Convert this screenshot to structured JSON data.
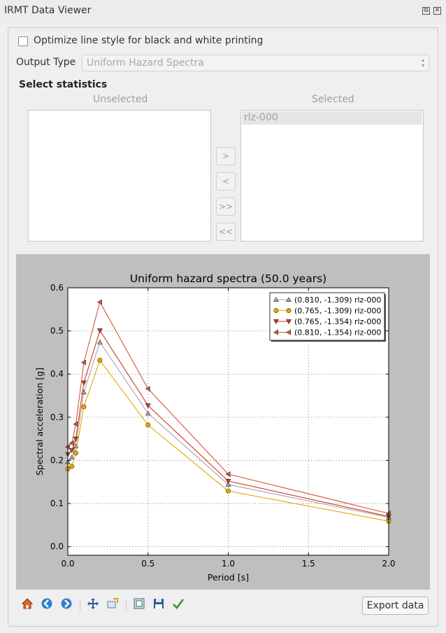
{
  "window": {
    "title": "IRMT Data Viewer"
  },
  "options": {
    "bw_label": "Optimize line style for black and white printing"
  },
  "output": {
    "label": "Output Type",
    "value": "Uniform Hazard Spectra"
  },
  "stats": {
    "title": "Select statistics",
    "unselected_header": "Unselected",
    "selected_header": "Selected",
    "unselected": [],
    "selected": [
      "rlz-000"
    ],
    "buttons": {
      "add": ">",
      "remove": "<",
      "add_all": ">>",
      "remove_all": "<<"
    }
  },
  "export": {
    "label": "Export data"
  },
  "chart_data": {
    "type": "line",
    "title": "Uniform hazard spectra (50.0 years)",
    "xlabel": "Period [s]",
    "ylabel": "Spectral acceleration [g]",
    "xlim": [
      0,
      2
    ],
    "ylim": [
      -0.02,
      0.6
    ],
    "xticks": [
      0.0,
      0.5,
      1.0,
      1.5,
      2.0
    ],
    "xtick_labels": [
      "0.0",
      "0.5",
      "1.0",
      "1.5",
      "2.0"
    ],
    "yticks": [
      0.0,
      0.1,
      0.2,
      0.3,
      0.4,
      0.5,
      0.6
    ],
    "ytick_labels": [
      "0.0",
      "0.1",
      "0.2",
      "0.3",
      "0.4",
      "0.5",
      "0.6"
    ],
    "grid": true,
    "legend": "top-right",
    "x": [
      0.0,
      0.025,
      0.05,
      0.1,
      0.2,
      0.5,
      1.0,
      2.0
    ],
    "series": [
      {
        "name": "(0.810, -1.309) rlz-000",
        "color": "#b09fb0",
        "marker": "triangle-up",
        "values": [
          0.196,
          0.207,
          0.233,
          0.358,
          0.474,
          0.309,
          0.144,
          0.068
        ]
      },
      {
        "name": "(0.765, -1.309) rlz-000",
        "color": "#e0a800",
        "marker": "circle",
        "values": [
          0.18,
          0.186,
          0.217,
          0.324,
          0.432,
          0.282,
          0.129,
          0.059
        ]
      },
      {
        "name": "(0.765, -1.354) rlz-000",
        "color": "#c83a1c",
        "marker": "triangle-down",
        "values": [
          0.214,
          0.223,
          0.25,
          0.38,
          0.501,
          0.327,
          0.152,
          0.07
        ]
      },
      {
        "name": "(0.810, -1.354) rlz-000",
        "color": "#d8553c",
        "marker": "triangle-left",
        "values": [
          0.231,
          0.24,
          0.284,
          0.427,
          0.567,
          0.366,
          0.168,
          0.077
        ]
      }
    ]
  },
  "toolbar": {
    "icons": [
      "home-icon",
      "back-icon",
      "forward-icon",
      "pan-icon",
      "zoom-icon",
      "configure-icon",
      "save-icon",
      "edit-curves-icon"
    ]
  }
}
